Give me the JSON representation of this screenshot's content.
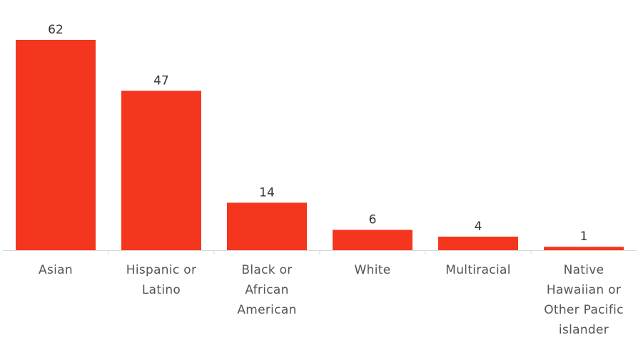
{
  "chart_data": {
    "type": "bar",
    "title": "",
    "xlabel": "",
    "ylabel": "",
    "categories": [
      [
        "Asian"
      ],
      [
        "Hispanic or",
        "Latino"
      ],
      [
        "Black or",
        "African",
        "American"
      ],
      [
        "White"
      ],
      [
        "Multiracial"
      ],
      [
        "Native",
        "Hawaiian or",
        "Other Pacific",
        "islander"
      ]
    ],
    "values": [
      62,
      47,
      14,
      6,
      4,
      1
    ],
    "value_labels": [
      "62",
      "47",
      "14",
      "6",
      "4",
      "1"
    ],
    "ylim": [
      0,
      62
    ],
    "grid": false,
    "legend": "none",
    "bar_color": "#f4361e",
    "axis_color": "#d9d9d9"
  }
}
